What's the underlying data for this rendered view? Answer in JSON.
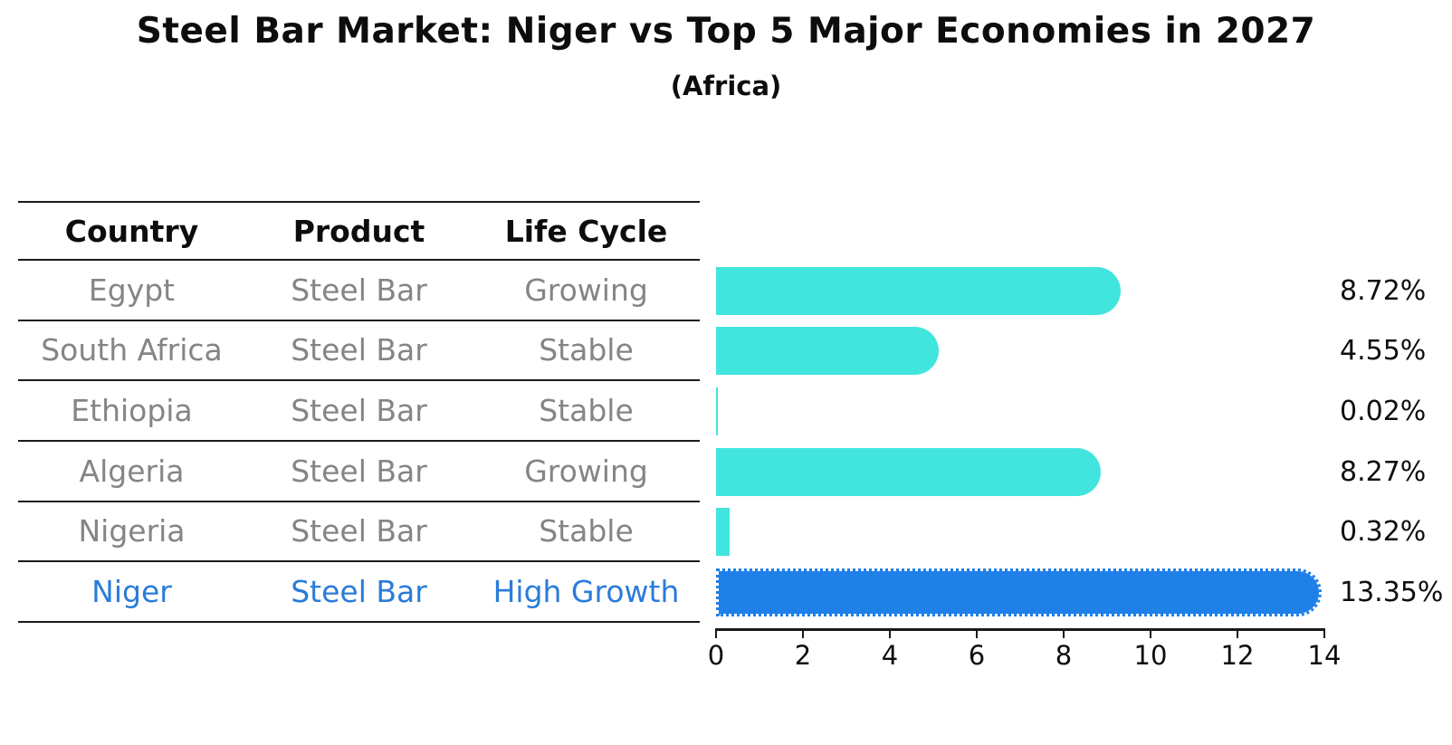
{
  "title": "Steel Bar Market: Niger vs Top 5 Major Economies in 2027",
  "subtitle": "(Africa)",
  "table": {
    "headers": {
      "country": "Country",
      "product": "Product",
      "life_cycle": "Life Cycle"
    },
    "rows": [
      {
        "country": "Egypt",
        "product": "Steel Bar",
        "life_cycle": "Growing"
      },
      {
        "country": "South Africa",
        "product": "Steel Bar",
        "life_cycle": "Stable"
      },
      {
        "country": "Ethiopia",
        "product": "Steel Bar",
        "life_cycle": "Stable"
      },
      {
        "country": "Algeria",
        "product": "Steel Bar",
        "life_cycle": "Growing"
      },
      {
        "country": "Nigeria",
        "product": "Steel Bar",
        "life_cycle": "Stable"
      },
      {
        "country": "Niger",
        "product": "Steel Bar",
        "life_cycle": "High Growth"
      }
    ]
  },
  "chart_data": {
    "type": "bar",
    "orientation": "horizontal",
    "title": "Steel Bar Market: Niger vs Top 5 Major Economies in 2027 (Africa)",
    "categories": [
      "Egypt",
      "South Africa",
      "Ethiopia",
      "Algeria",
      "Nigeria",
      "Niger"
    ],
    "values": [
      8.72,
      4.55,
      0.02,
      8.27,
      0.32,
      13.35
    ],
    "value_labels": [
      "8.72%",
      "4.55%",
      "0.02%",
      "8.27%",
      "0.32%",
      "13.35%"
    ],
    "xlim": [
      0,
      14
    ],
    "xticks": [
      "0",
      "2",
      "4",
      "6",
      "8",
      "10",
      "12",
      "14"
    ],
    "grid": false,
    "legend_position": "none",
    "bar_color": "#42e5de",
    "highlight_bar_color": "#1f80e8",
    "highlight_text_color": "#2b7cd9",
    "highlight_index": 5,
    "highlight_category": "Niger"
  }
}
